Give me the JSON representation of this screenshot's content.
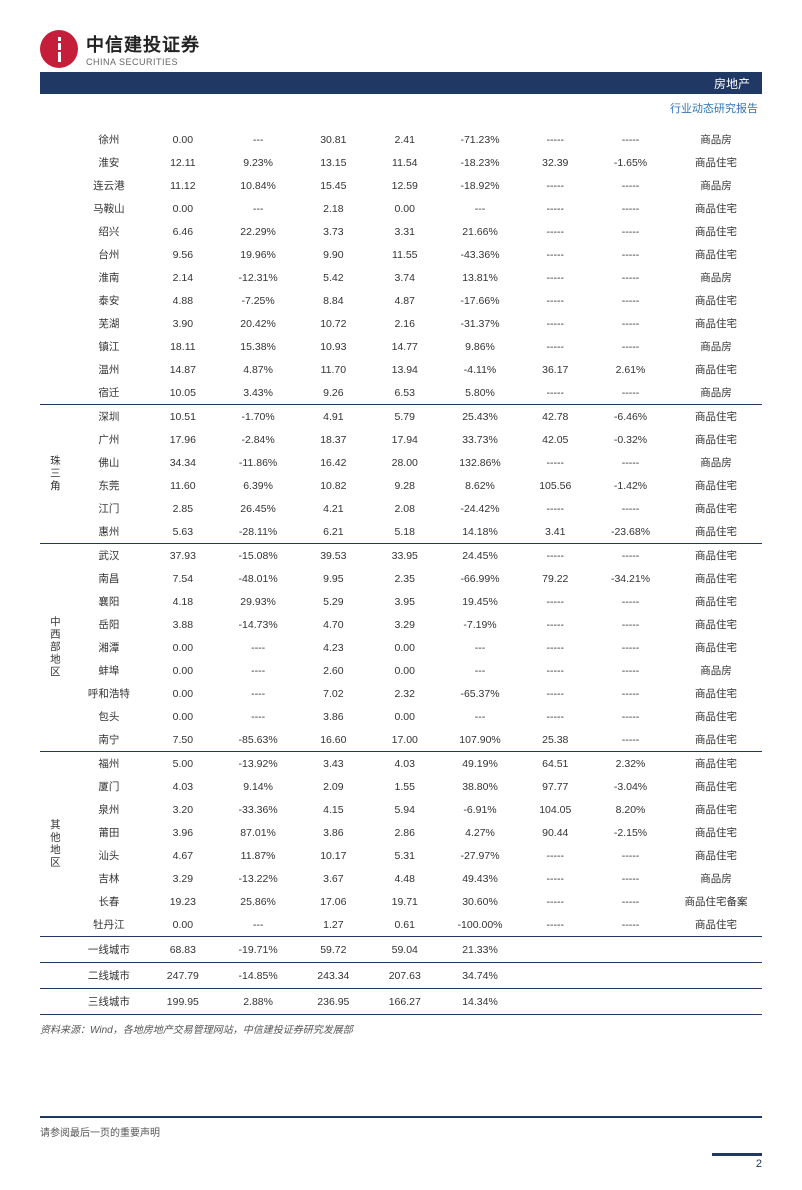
{
  "header": {
    "company_cn": "中信建投证券",
    "company_en": "CHINA SECURITIES",
    "sector": "房地产",
    "report_type": "行业动态研究报告"
  },
  "colors": {
    "brand_red": "#c41e3a",
    "brand_navy": "#1f3864",
    "link_blue": "#2e75b6",
    "text": "#333333",
    "background": "#ffffff"
  },
  "table": {
    "dash4": "----",
    "dash5": "-----",
    "dash3": "---",
    "groups": [
      {
        "region": "",
        "rows": [
          {
            "city": "徐州",
            "v": [
              "0.00",
              "---",
              "30.81",
              "2.41",
              "-71.23%",
              "-----",
              "-----"
            ],
            "type": "商品房"
          },
          {
            "city": "淮安",
            "v": [
              "12.11",
              "9.23%",
              "13.15",
              "11.54",
              "-18.23%",
              "32.39",
              "-1.65%"
            ],
            "type": "商品住宅"
          },
          {
            "city": "连云港",
            "v": [
              "11.12",
              "10.84%",
              "15.45",
              "12.59",
              "-18.92%",
              "-----",
              "-----"
            ],
            "type": "商品房"
          },
          {
            "city": "马鞍山",
            "v": [
              "0.00",
              "---",
              "2.18",
              "0.00",
              "---",
              "-----",
              "-----"
            ],
            "type": "商品住宅"
          },
          {
            "city": "绍兴",
            "v": [
              "6.46",
              "22.29%",
              "3.73",
              "3.31",
              "21.66%",
              "-----",
              "-----"
            ],
            "type": "商品住宅"
          },
          {
            "city": "台州",
            "v": [
              "9.56",
              "19.96%",
              "9.90",
              "11.55",
              "-43.36%",
              "-----",
              "-----"
            ],
            "type": "商品住宅"
          },
          {
            "city": "淮南",
            "v": [
              "2.14",
              "-12.31%",
              "5.42",
              "3.74",
              "13.81%",
              "-----",
              "-----"
            ],
            "type": "商品房"
          },
          {
            "city": "泰安",
            "v": [
              "4.88",
              "-7.25%",
              "8.84",
              "4.87",
              "-17.66%",
              "-----",
              "-----"
            ],
            "type": "商品住宅"
          },
          {
            "city": "芜湖",
            "v": [
              "3.90",
              "20.42%",
              "10.72",
              "2.16",
              "-31.37%",
              "-----",
              "-----"
            ],
            "type": "商品住宅"
          },
          {
            "city": "镇江",
            "v": [
              "18.11",
              "15.38%",
              "10.93",
              "14.77",
              "9.86%",
              "-----",
              "-----"
            ],
            "type": "商品房"
          },
          {
            "city": "温州",
            "v": [
              "14.87",
              "4.87%",
              "11.70",
              "13.94",
              "-4.11%",
              "36.17",
              "2.61%"
            ],
            "type": "商品住宅"
          },
          {
            "city": "宿迁",
            "v": [
              "10.05",
              "3.43%",
              "9.26",
              "6.53",
              "5.80%",
              "-----",
              "-----"
            ],
            "type": "商品房"
          }
        ]
      },
      {
        "region": "珠三角",
        "rows": [
          {
            "city": "深圳",
            "v": [
              "10.51",
              "-1.70%",
              "4.91",
              "5.79",
              "25.43%",
              "42.78",
              "-6.46%"
            ],
            "type": "商品住宅"
          },
          {
            "city": "广州",
            "v": [
              "17.96",
              "-2.84%",
              "18.37",
              "17.94",
              "33.73%",
              "42.05",
              "-0.32%"
            ],
            "type": "商品住宅"
          },
          {
            "city": "佛山",
            "v": [
              "34.34",
              "-11.86%",
              "16.42",
              "28.00",
              "132.86%",
              "-----",
              "-----"
            ],
            "type": "商品房"
          },
          {
            "city": "东莞",
            "v": [
              "11.60",
              "6.39%",
              "10.82",
              "9.28",
              "8.62%",
              "105.56",
              "-1.42%"
            ],
            "type": "商品住宅"
          },
          {
            "city": "江门",
            "v": [
              "2.85",
              "26.45%",
              "4.21",
              "2.08",
              "-24.42%",
              "-----",
              "-----"
            ],
            "type": "商品住宅"
          },
          {
            "city": "惠州",
            "v": [
              "5.63",
              "-28.11%",
              "6.21",
              "5.18",
              "14.18%",
              "3.41",
              "-23.68%"
            ],
            "type": "商品住宅"
          }
        ]
      },
      {
        "region": "中西部地区",
        "rows": [
          {
            "city": "武汉",
            "v": [
              "37.93",
              "-15.08%",
              "39.53",
              "33.95",
              "24.45%",
              "-----",
              "-----"
            ],
            "type": "商品住宅"
          },
          {
            "city": "南昌",
            "v": [
              "7.54",
              "-48.01%",
              "9.95",
              "2.35",
              "-66.99%",
              "79.22",
              "-34.21%"
            ],
            "type": "商品住宅"
          },
          {
            "city": "襄阳",
            "v": [
              "4.18",
              "29.93%",
              "5.29",
              "3.95",
              "19.45%",
              "-----",
              "-----"
            ],
            "type": "商品住宅"
          },
          {
            "city": "岳阳",
            "v": [
              "3.88",
              "-14.73%",
              "4.70",
              "3.29",
              "-7.19%",
              "-----",
              "-----"
            ],
            "type": "商品住宅"
          },
          {
            "city": "湘潭",
            "v": [
              "0.00",
              "----",
              "4.23",
              "0.00",
              "---",
              "-----",
              "-----"
            ],
            "type": "商品住宅"
          },
          {
            "city": "蚌埠",
            "v": [
              "0.00",
              "----",
              "2.60",
              "0.00",
              "---",
              "-----",
              "-----"
            ],
            "type": "商品房"
          },
          {
            "city": "呼和浩特",
            "v": [
              "0.00",
              "----",
              "7.02",
              "2.32",
              "-65.37%",
              "-----",
              "-----"
            ],
            "type": "商品住宅"
          },
          {
            "city": "包头",
            "v": [
              "0.00",
              "----",
              "3.86",
              "0.00",
              "---",
              "-----",
              "-----"
            ],
            "type": "商品住宅"
          },
          {
            "city": "南宁",
            "v": [
              "7.50",
              "-85.63%",
              "16.60",
              "17.00",
              "107.90%",
              "25.38",
              "-----"
            ],
            "type": "商品住宅"
          }
        ]
      },
      {
        "region": "其他地区",
        "rows": [
          {
            "city": "福州",
            "v": [
              "5.00",
              "-13.92%",
              "3.43",
              "4.03",
              "49.19%",
              "64.51",
              "2.32%"
            ],
            "type": "商品住宅"
          },
          {
            "city": "厦门",
            "v": [
              "4.03",
              "9.14%",
              "2.09",
              "1.55",
              "38.80%",
              "97.77",
              "-3.04%"
            ],
            "type": "商品住宅"
          },
          {
            "city": "泉州",
            "v": [
              "3.20",
              "-33.36%",
              "4.15",
              "5.94",
              "-6.91%",
              "104.05",
              "8.20%"
            ],
            "type": "商品住宅"
          },
          {
            "city": "莆田",
            "v": [
              "3.96",
              "87.01%",
              "3.86",
              "2.86",
              "4.27%",
              "90.44",
              "-2.15%"
            ],
            "type": "商品住宅"
          },
          {
            "city": "汕头",
            "v": [
              "4.67",
              "11.87%",
              "10.17",
              "5.31",
              "-27.97%",
              "-----",
              "-----"
            ],
            "type": "商品住宅"
          },
          {
            "city": "吉林",
            "v": [
              "3.29",
              "-13.22%",
              "3.67",
              "4.48",
              "49.43%",
              "-----",
              "-----"
            ],
            "type": "商品房"
          },
          {
            "city": "长春",
            "v": [
              "19.23",
              "25.86%",
              "17.06",
              "19.71",
              "30.60%",
              "-----",
              "-----"
            ],
            "type": "商品住宅备案"
          },
          {
            "city": "牡丹江",
            "v": [
              "0.00",
              "---",
              "1.27",
              "0.61",
              "-100.00%",
              "-----",
              "-----"
            ],
            "type": "商品住宅"
          }
        ]
      }
    ],
    "summary": [
      {
        "label": "一线城市",
        "v": [
          "68.83",
          "-19.71%",
          "59.72",
          "59.04",
          "21.33%"
        ]
      },
      {
        "label": "二线城市",
        "v": [
          "247.79",
          "-14.85%",
          "243.34",
          "207.63",
          "34.74%"
        ]
      },
      {
        "label": "三线城市",
        "v": [
          "199.95",
          "2.88%",
          "236.95",
          "166.27",
          "14.34%"
        ]
      }
    ]
  },
  "source_note": "资料来源：Wind，各地房地产交易管理网站，中信建投证券研究发展部",
  "footer_text": "请参阅最后一页的重要声明",
  "page_number": "2"
}
